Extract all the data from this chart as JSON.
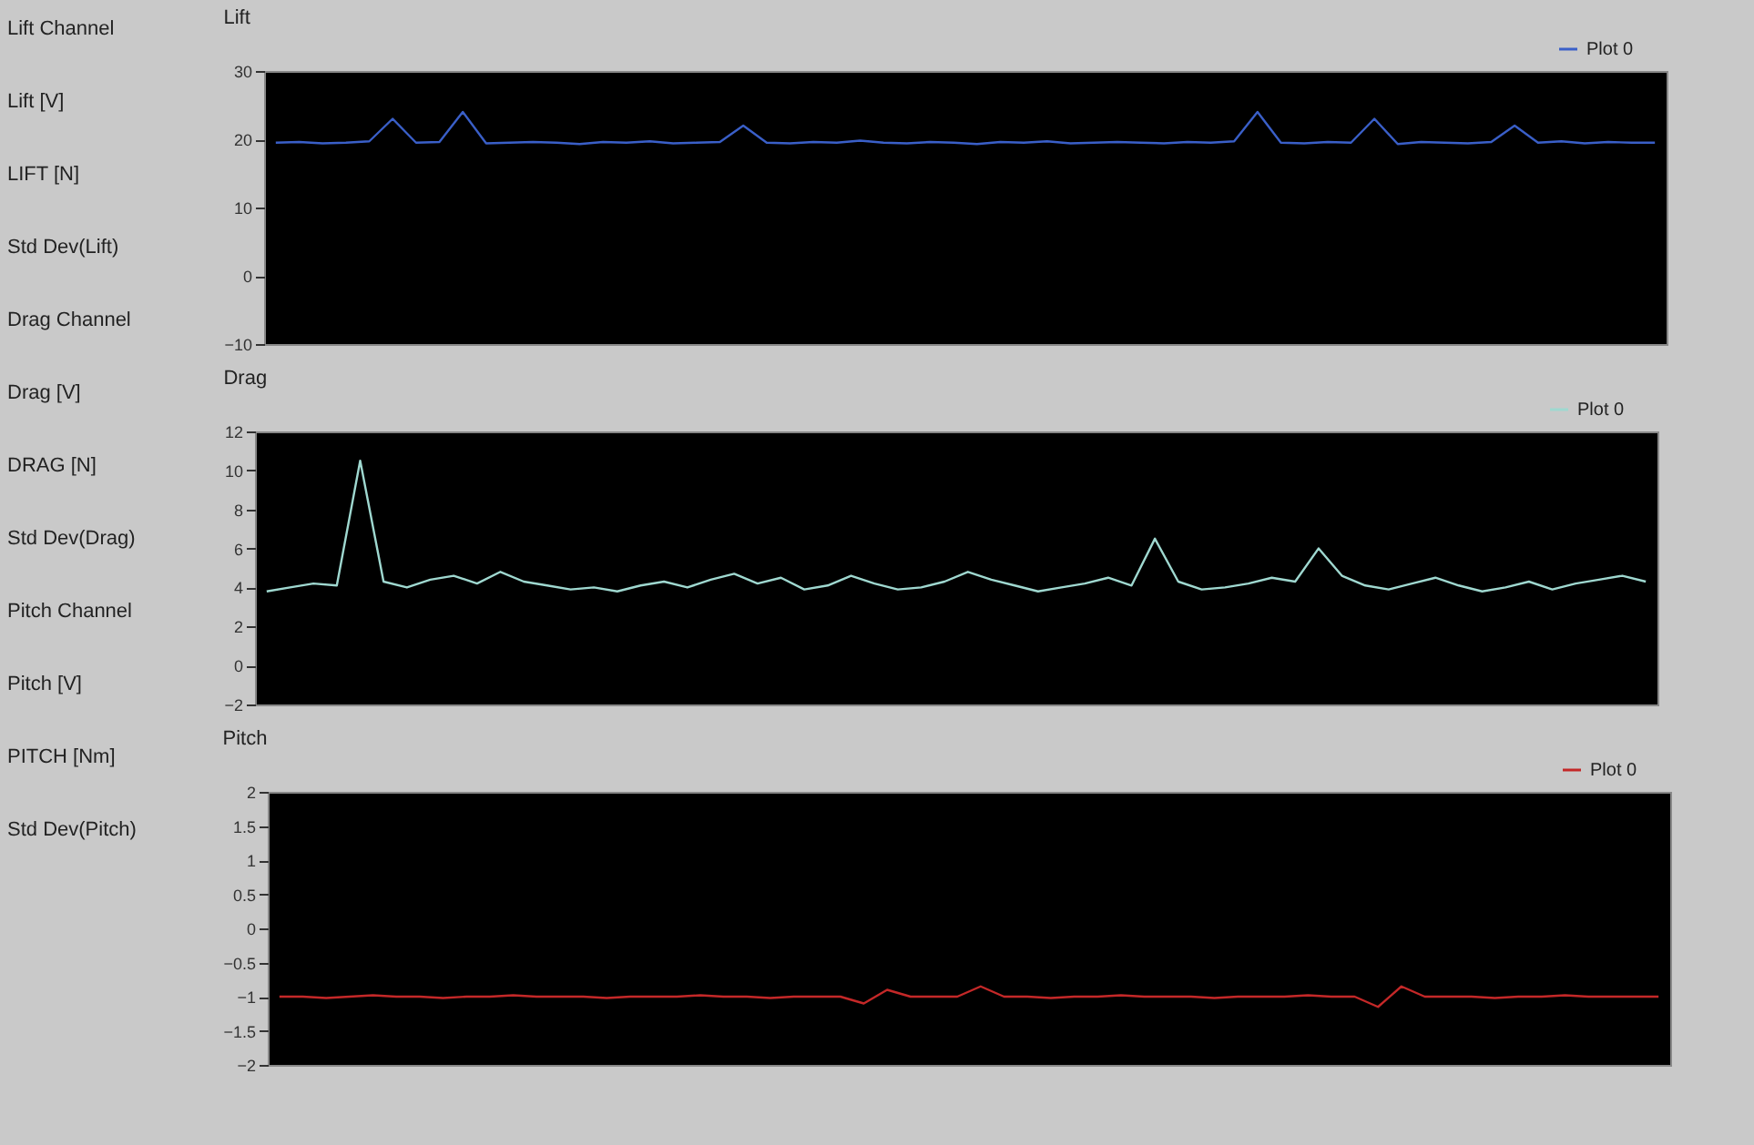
{
  "chart_data": [
    {
      "type": "other",
      "annotations": [
        "Lift Channel",
        "Lift [V]",
        "LIFT [N]",
        "Std Dev(Lift)",
        "Drag Channel",
        "Drag [V]",
        "DRAG [N]",
        "Std Dev(Drag)",
        "Pitch Channel",
        "Pitch [V]",
        "PITCH [Nm]",
        "Std Dev(Pitch)"
      ]
    },
    {
      "type": "line",
      "title": "Lift",
      "categories": [
        null,
        null,
        null,
        null,
        null,
        null,
        null,
        null,
        null,
        null,
        null,
        null,
        null,
        null,
        null,
        null,
        null,
        null,
        null,
        null,
        null,
        null,
        null,
        null,
        null,
        null,
        null,
        null,
        null,
        null,
        null,
        null,
        null,
        null,
        null,
        null,
        null,
        null,
        null,
        null,
        null,
        null,
        null,
        null,
        null,
        null,
        null,
        null,
        null,
        null,
        null,
        null,
        null,
        null,
        null,
        null,
        null,
        null,
        null,
        null
      ],
      "series": [
        {
          "name": "Plot 0",
          "color": "#3a5fc8",
          "values": [
            19.5,
            19.6,
            19.4,
            19.5,
            19.7,
            23,
            19.5,
            19.6,
            24,
            19.4,
            19.5,
            19.6,
            19.5,
            19.3,
            19.6,
            19.5,
            19.7,
            19.4,
            19.5,
            19.6,
            22,
            19.5,
            19.4,
            19.6,
            19.5,
            19.8,
            19.5,
            19.4,
            19.6,
            19.5,
            19.3,
            19.6,
            19.5,
            19.7,
            19.4,
            19.5,
            19.6,
            19.5,
            19.4,
            19.6,
            19.5,
            19.7,
            24,
            19.5,
            19.4,
            19.6,
            19.5,
            23,
            19.3,
            19.6,
            19.5,
            19.4,
            19.6,
            22,
            19.5,
            19.7,
            19.4,
            19.6,
            19.5,
            19.5
          ]
        }
      ],
      "ylim": [
        -10,
        30
      ],
      "yticks": [
        -10,
        0,
        10,
        20,
        30
      ],
      "tick_labels": "y",
      "legend": "top right",
      "marker": "none",
      "line_style": "solid"
    },
    {
      "type": "line",
      "title": "Drag",
      "categories": [
        null,
        null,
        null,
        null,
        null,
        null,
        null,
        null,
        null,
        null,
        null,
        null,
        null,
        null,
        null,
        null,
        null,
        null,
        null,
        null,
        null,
        null,
        null,
        null,
        null,
        null,
        null,
        null,
        null,
        null,
        null,
        null,
        null,
        null,
        null,
        null,
        null,
        null,
        null,
        null,
        null,
        null,
        null,
        null,
        null,
        null,
        null,
        null,
        null,
        null,
        null,
        null,
        null,
        null,
        null,
        null,
        null,
        null,
        null,
        null
      ],
      "series": [
        {
          "name": "Plot 0",
          "color": "#9fd8d0",
          "values": [
            3.8,
            4,
            4.2,
            4.1,
            10.5,
            4.3,
            4,
            4.4,
            4.6,
            4.2,
            4.8,
            4.3,
            4.1,
            3.9,
            4,
            3.8,
            4.1,
            4.3,
            4,
            4.4,
            4.7,
            4.2,
            4.5,
            3.9,
            4.1,
            4.6,
            4.2,
            3.9,
            4,
            4.3,
            4.8,
            4.4,
            4.1,
            3.8,
            4,
            4.2,
            4.5,
            4.1,
            6.5,
            4.3,
            3.9,
            4,
            4.2,
            4.5,
            4.3,
            6,
            4.6,
            4.1,
            3.9,
            4.2,
            4.5,
            4.1,
            3.8,
            4,
            4.3,
            3.9,
            4.2,
            4.4,
            4.6,
            4.3
          ]
        }
      ],
      "ylim": [
        -2,
        12
      ],
      "yticks": [
        -2,
        0,
        2,
        4,
        6,
        8,
        10,
        12
      ],
      "tick_labels": "y",
      "legend": "top right",
      "marker": "none",
      "line_style": "solid"
    },
    {
      "type": "line",
      "title": "Pitch",
      "categories": [
        null,
        null,
        null,
        null,
        null,
        null,
        null,
        null,
        null,
        null,
        null,
        null,
        null,
        null,
        null,
        null,
        null,
        null,
        null,
        null,
        null,
        null,
        null,
        null,
        null,
        null,
        null,
        null,
        null,
        null,
        null,
        null,
        null,
        null,
        null,
        null,
        null,
        null,
        null,
        null,
        null,
        null,
        null,
        null,
        null,
        null,
        null,
        null,
        null,
        null,
        null,
        null,
        null,
        null,
        null,
        null,
        null,
        null,
        null,
        null
      ],
      "series": [
        {
          "name": "Plot 0",
          "color": "#c42828",
          "values": [
            -1,
            -1,
            -1.02,
            -1,
            -0.98,
            -1,
            -1,
            -1.02,
            -1,
            -1,
            -0.98,
            -1,
            -1,
            -1,
            -1.02,
            -1,
            -1,
            -1,
            -0.98,
            -1,
            -1,
            -1.02,
            -1,
            -1,
            -1,
            -1.1,
            -0.9,
            -1,
            -1,
            -1,
            -0.85,
            -1,
            -1,
            -1.02,
            -1,
            -1,
            -0.98,
            -1,
            -1,
            -1,
            -1.02,
            -1,
            -1,
            -1,
            -0.98,
            -1,
            -1,
            -1.15,
            -0.85,
            -1,
            -1,
            -1,
            -1.02,
            -1,
            -1,
            -0.98,
            -1,
            -1,
            -1,
            -1
          ]
        }
      ],
      "ylim": [
        -2,
        2
      ],
      "yticks": [
        -2,
        -1.5,
        -1,
        -0.5,
        0,
        0.5,
        1,
        1.5,
        2
      ],
      "tick_labels": "y",
      "legend": "top right",
      "marker": "none",
      "line_style": "solid"
    }
  ]
}
